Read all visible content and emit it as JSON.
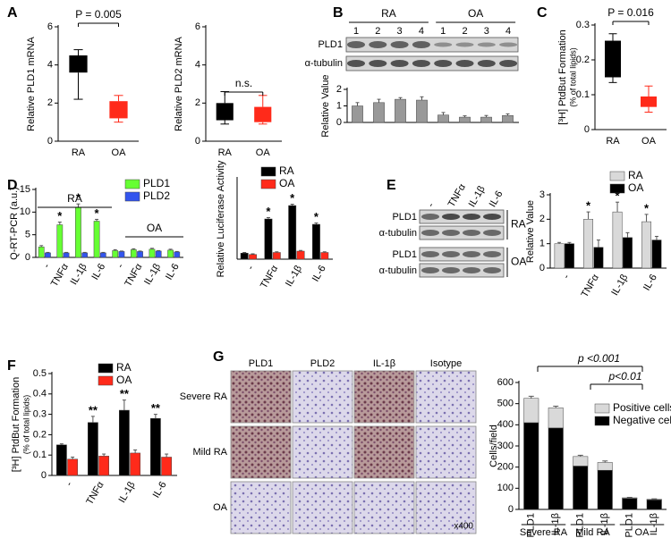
{
  "chart_data": [
    {
      "type": "box",
      "panel": "A",
      "ylabel": "Relative PLD1 mRNA",
      "categories": [
        "RA",
        "OA"
      ],
      "boxes": [
        {
          "low": 2.2,
          "q1": 3.6,
          "q3": 4.5,
          "high": 4.8
        },
        {
          "low": 1.0,
          "q1": 1.2,
          "q3": 2.1,
          "high": 2.4
        }
      ],
      "colors": [
        "#000000",
        "#ff2a1a"
      ],
      "ylim": [
        0,
        6
      ],
      "yticks": [
        0,
        2,
        4,
        6
      ],
      "annotation": "P = 0.005"
    },
    {
      "type": "box",
      "ylabel": "Relative PLD2 mRNA",
      "categories": [
        "RA",
        "OA"
      ],
      "boxes": [
        {
          "low": 0.9,
          "q1": 1.1,
          "q3": 2.0,
          "high": 2.6
        },
        {
          "low": 0.9,
          "q1": 1.0,
          "q3": 1.8,
          "high": 2.4
        }
      ],
      "colors": [
        "#000000",
        "#ff2a1a"
      ],
      "ylim": [
        0,
        6
      ],
      "yticks": [
        0,
        2,
        4,
        6
      ],
      "annotation": "n.s."
    },
    {
      "type": "bar",
      "panel": "B",
      "ylabel": "Relative Value",
      "categories": [
        null,
        null,
        null,
        null,
        null,
        null,
        null,
        null
      ],
      "series": [
        {
          "color": "#999999",
          "values": [
            1.0,
            1.2,
            1.4,
            1.35,
            0.45,
            0.32,
            0.32,
            0.42
          ],
          "errors": [
            0.2,
            0.2,
            0.1,
            0.2,
            0.15,
            0.08,
            0.1,
            0.1
          ]
        }
      ],
      "ylim": [
        0,
        2
      ],
      "yticks": [
        0,
        1,
        2
      ]
    },
    {
      "type": "box",
      "panel": "C",
      "ylabel": "[³H] PtdBut Formation",
      "ylabel_note": "(% of total lipids)",
      "categories": [
        "RA",
        "OA"
      ],
      "boxes": [
        {
          "low": 0.135,
          "q1": 0.15,
          "q3": 0.255,
          "high": 0.275
        },
        {
          "low": 0.05,
          "q1": 0.065,
          "q3": 0.095,
          "high": 0.125
        }
      ],
      "colors": [
        "#000000",
        "#ff2a1a"
      ],
      "ylim": [
        0,
        0.3
      ],
      "yticks": [
        0,
        0.1,
        0.2,
        0.3
      ],
      "annotation": "P = 0.016"
    },
    {
      "type": "bar",
      "panel": "D",
      "ylabel": "Q-RT-PCR (a.u.)",
      "categories": [
        "-",
        "TNFα",
        "IL-1β",
        "IL-6",
        "-",
        "TNFα",
        "IL-1β",
        "IL-6"
      ],
      "groups": [
        "RA",
        "OA"
      ],
      "legend": "upper right",
      "series": [
        {
          "name": "PLD1",
          "color": "#66ff33",
          "values": [
            2.3,
            7.2,
            11.1,
            8.0,
            1.5,
            1.7,
            1.8,
            1.6
          ],
          "errors": [
            0.3,
            0.6,
            0.7,
            0.4,
            0.2,
            0.2,
            0.2,
            0.2
          ],
          "annotations": [
            null,
            "*",
            "*",
            "*",
            null,
            null,
            null,
            null
          ]
        },
        {
          "name": "PLD2",
          "color": "#3355ee",
          "values": [
            1.0,
            1.0,
            1.0,
            1.0,
            1.3,
            1.3,
            1.4,
            1.2
          ],
          "errors": [
            0.1,
            0.1,
            0.1,
            0.1,
            0.1,
            0.1,
            0.1,
            0.1
          ]
        }
      ],
      "ylim": [
        0,
        15
      ],
      "yticks": [
        0,
        5,
        10,
        15
      ]
    },
    {
      "type": "bar",
      "ylabel": "Relative Luciferase Activity",
      "categories": [
        "-",
        "TNFα",
        "IL-1β",
        "IL-6"
      ],
      "legend": "upper left",
      "series": [
        {
          "name": "RA",
          "color": "#000000",
          "values": [
            0.45,
            3.0,
            4.0,
            2.6
          ],
          "errors": [
            0.05,
            0.1,
            0.1,
            0.1
          ],
          "annotations": [
            null,
            "*",
            "*",
            "*"
          ]
        },
        {
          "name": "OA",
          "color": "#ff2a1a",
          "values": [
            0.35,
            0.5,
            0.6,
            0.5
          ],
          "errors": [
            0.05,
            0.05,
            0.05,
            0.05
          ]
        }
      ],
      "ylim": [
        0,
        6
      ]
    },
    {
      "type": "bar",
      "ylabel": "Relative Value",
      "categories": [
        "-",
        "TNFα",
        "IL-1β",
        "IL-6"
      ],
      "legend": "upper right",
      "series": [
        {
          "name": "RA",
          "color": "#d9d9d9",
          "values": [
            1.0,
            2.0,
            2.3,
            1.9
          ],
          "errors": [
            0.05,
            0.3,
            0.4,
            0.3
          ],
          "annotations": [
            null,
            "*",
            "*",
            "*"
          ]
        },
        {
          "name": "OA",
          "color": "#000000",
          "values": [
            1.0,
            0.85,
            1.25,
            1.15
          ],
          "errors": [
            0.05,
            0.3,
            0.2,
            0.15
          ]
        }
      ],
      "ylim": [
        0,
        3
      ],
      "yticks": [
        0,
        1,
        2,
        3
      ]
    },
    {
      "type": "bar",
      "panel": "F",
      "ylabel": "[³H] PtdBut Formation",
      "ylabel_note": "(% of total lipids)",
      "categories": [
        "-",
        "TNFα",
        "IL-1β",
        "IL-6"
      ],
      "legend": "upper right",
      "series": [
        {
          "name": "RA",
          "color": "#000000",
          "values": [
            0.15,
            0.26,
            0.32,
            0.28
          ],
          "errors": [
            0.005,
            0.03,
            0.05,
            0.02
          ],
          "annotations": [
            null,
            "**",
            "**",
            "**"
          ]
        },
        {
          "name": "OA",
          "color": "#ff2a1a",
          "values": [
            0.08,
            0.095,
            0.11,
            0.09
          ],
          "errors": [
            0.01,
            0.01,
            0.015,
            0.015
          ]
        }
      ],
      "ylim": [
        0,
        0.5
      ],
      "yticks": [
        0,
        0.1,
        0.2,
        0.3,
        0.4,
        0.5
      ]
    },
    {
      "type": "stacked_bar",
      "ylabel": "Cells/field",
      "categories": [
        "PLD1",
        "IL-1β",
        "PLD1",
        "IL-1β",
        "PLD1",
        "IL-1β"
      ],
      "groups": [
        "Severe RA",
        "Mild RA",
        "OA"
      ],
      "legend": "upper right",
      "series": [
        {
          "name": "Positive cells",
          "color": "#d9d9d9",
          "values": [
            115,
            95,
            45,
            37,
            3,
            3
          ],
          "errors": [
            10,
            8,
            6,
            7,
            2,
            2
          ]
        },
        {
          "name": "Negative cells",
          "color": "#000000",
          "values": [
            410,
            385,
            205,
            185,
            52,
            45
          ]
        }
      ],
      "ylim": [
        0,
        600
      ],
      "yticks": [
        0,
        100,
        200,
        300,
        400,
        500,
        600
      ],
      "comparisons": [
        "p <0.001",
        "p<0.01"
      ]
    }
  ],
  "blots": {
    "B": {
      "groups": [
        "RA",
        "OA"
      ],
      "lanes": [
        "1",
        "2",
        "3",
        "4",
        "1",
        "2",
        "3",
        "4"
      ],
      "rows": [
        "PLD1",
        "α-tubulin"
      ]
    },
    "E": {
      "panel": "E",
      "lanes": [
        "-",
        "TNFα",
        "IL-1β",
        "IL-6"
      ],
      "rows": [
        "PLD1",
        "α-tubulin",
        "PLD1",
        "α-tubulin"
      ],
      "groups": [
        "RA",
        "OA"
      ]
    }
  },
  "histology": {
    "panel": "G",
    "columns": [
      "PLD1",
      "PLD2",
      "IL-1β",
      "Isotype"
    ],
    "rows": [
      "Severe RA",
      "Mild RA",
      "OA"
    ],
    "magnification": "x400"
  }
}
